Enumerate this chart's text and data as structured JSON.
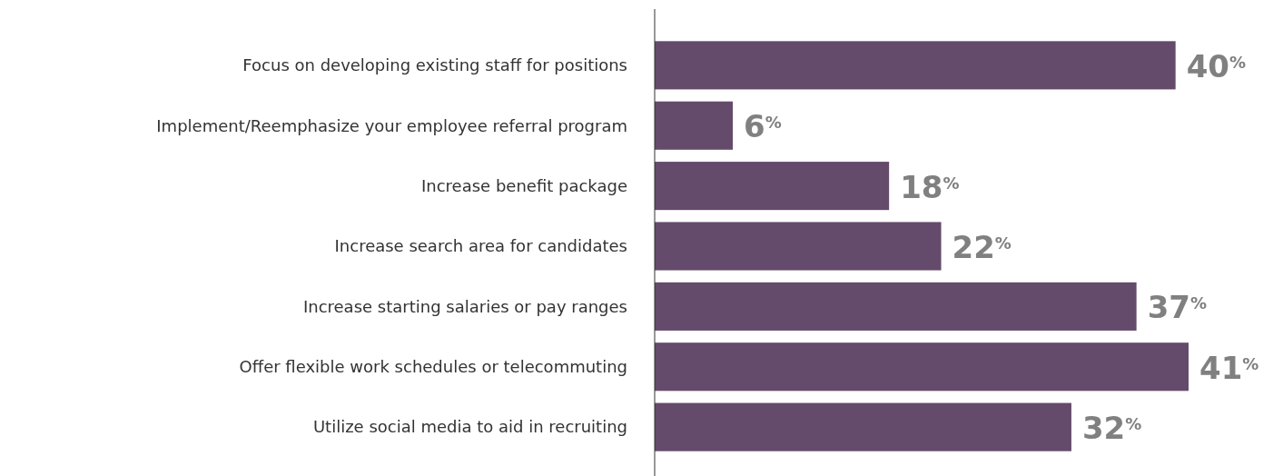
{
  "chart_data": {
    "type": "bar",
    "orientation": "horizontal",
    "categories": [
      "Focus on developing existing staff for positions",
      "Implement/Reemphasize your employee referral program",
      "Increase benefit package",
      "Increase search area for candidates",
      "Increase starting salaries or pay ranges",
      "Offer flexible work schedules or telecommuting",
      "Utilize social media to aid in recruiting"
    ],
    "values": [
      40,
      6,
      18,
      22,
      37,
      41,
      32
    ],
    "color": "#644a6b",
    "value_labels": [
      "40$^{%}$",
      "6$^{%}$",
      "18$^{%}$",
      "22$^{%}$",
      "37$^{%}$",
      "41$^{%}$",
      "32$^{%}$"
    ],
    "data_labels": true
  }
}
